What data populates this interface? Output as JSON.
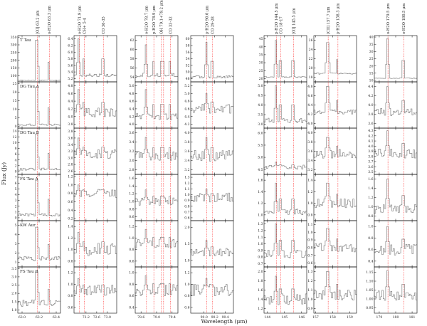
{
  "chart_data": {
    "type": "line",
    "xlabel": "Wavelength (μm)",
    "ylabel": "Flux (Jy)",
    "grid": false,
    "colors": {
      "spectrum": "#888888",
      "line_marker": "#ff2a2a",
      "frame": "#000000"
    },
    "sources": [
      "T Tau",
      "DG Tau A",
      "DG Tau B",
      "FS Tau A",
      "KW Aur",
      "FS Tau B"
    ],
    "windows": [
      {
        "xlim": [
          62.95,
          63.45
        ],
        "xticks": [
          "63.0",
          "63.2",
          "63.4"
        ],
        "lines": [
          {
            "label": "[OI] 63.2 μm",
            "x": 63.18
          },
          {
            "label": "o-H2O 63.3 μm",
            "x": 63.32
          }
        ],
        "rows": [
          {
            "yticks": [
              "100",
              "150",
              "200",
              "250",
              "300",
              "350"
            ],
            "ylim": [
              60,
              360
            ],
            "peak": 330,
            "cont": 70,
            "noise": 2
          },
          {
            "yticks": [
              "0",
              "5",
              "10",
              "15",
              "20",
              "25"
            ],
            "ylim": [
              -1,
              26
            ],
            "peak": 23,
            "cont": 1,
            "noise": 0.5
          },
          {
            "yticks": [
              "0",
              "2",
              "4",
              "6",
              "8",
              "10",
              "12",
              "14"
            ],
            "ylim": [
              -1,
              15
            ],
            "peak": 13,
            "cont": 0.8,
            "noise": 0.4
          },
          {
            "yticks": [
              "0",
              "1",
              "2",
              "3",
              "4",
              "5",
              "6",
              "7"
            ],
            "ylim": [
              -0.5,
              7.5
            ],
            "peak": 6.5,
            "cont": 0.5,
            "noise": 0.25
          },
          {
            "yticks": [
              "1",
              "2",
              "3",
              "4",
              "5"
            ],
            "ylim": [
              0.5,
              5.5
            ],
            "peak": 4.8,
            "cont": 1.4,
            "noise": 0.25
          },
          {
            "yticks": [
              "1.0",
              "1.5",
              "2.0",
              "2.5",
              "3.0",
              "3.5"
            ],
            "ylim": [
              0.8,
              3.6
            ],
            "peak": 3.3,
            "cont": 1.4,
            "noise": 0.2
          }
        ]
      },
      {
        "xlim": [
          71.75,
          73.35
        ],
        "xticks": [
          "72.2",
          "72.6",
          "73.0"
        ],
        "lines": [
          {
            "label": "o-H2O 71.9 μm",
            "x": 71.95
          },
          {
            "label": "CH+ 5-4",
            "x": 72.14
          },
          {
            "label": "CO 36-35",
            "x": 72.85
          }
        ],
        "rows": [
          {
            "yticks": [
              "5.2",
              "5.4",
              "5.6",
              "5.8",
              "6.0",
              "6.2",
              "6.4"
            ],
            "ylim": [
              5.1,
              6.5
            ],
            "peak": 6.4,
            "cont": 5.3,
            "noise": 0.04
          },
          {
            "yticks": [
              "3.8",
              "4.0",
              "4.2",
              "4.4",
              "4.6",
              "4.8"
            ],
            "ylim": [
              3.7,
              4.9
            ],
            "peak": 4.7,
            "cont": 4.1,
            "noise": 0.12
          },
          {
            "yticks": [
              "2.6",
              "2.8",
              "3.0",
              "3.2",
              "3.4",
              "3.6",
              "3.8"
            ],
            "ylim": [
              2.5,
              3.9
            ],
            "peak": 3.6,
            "cont": 3.1,
            "noise": 0.15
          },
          {
            "yticks": [
              "0.2",
              "0.4",
              "0.6",
              "0.8",
              "1.0",
              "1.2"
            ],
            "ylim": [
              0.15,
              1.25
            ],
            "peak": 1.0,
            "cont": 0.8,
            "noise": 0.1
          },
          {
            "yticks": [
              "0.8",
              "1.0",
              "1.2",
              "1.4"
            ],
            "ylim": [
              0.7,
              1.5
            ],
            "peak": 1.3,
            "cont": 1.0,
            "noise": 0.12
          },
          {
            "yticks": [
              "0.6",
              "0.8",
              "1.0",
              "1.2"
            ],
            "ylim": [
              0.5,
              1.3
            ],
            "peak": 1.1,
            "cont": 0.9,
            "noise": 0.1
          }
        ]
      },
      {
        "xlim": [
          78.45,
          79.55
        ],
        "xticks": [
          "78.6",
          "79.0",
          "79.4"
        ],
        "lines": [
          {
            "label": "o-H2O 78.7 μm",
            "x": 78.74
          },
          {
            "label": "p-H2O 78.9 μm",
            "x": 78.93
          },
          {
            "label": "OH 79.1+79.2 μm",
            "x": 79.12
          },
          {
            "label": "",
            "x": 79.18
          },
          {
            "label": "CO 33-32",
            "x": 79.36
          }
        ],
        "rows": [
          {
            "yticks": [
              "54",
              "56",
              "58",
              "60",
              "62"
            ],
            "ylim": [
              53,
              63
            ],
            "peak": 61,
            "cont": 54.5,
            "noise": 0.4
          },
          {
            "yticks": [
              "4.0",
              "4.2",
              "4.4",
              "4.6",
              "4.8",
              "5.0"
            ],
            "ylim": [
              3.9,
              5.1
            ],
            "peak": 4.9,
            "cont": 4.2,
            "noise": 0.08
          },
          {
            "yticks": [
              "2.8",
              "3.0",
              "3.2",
              "3.4",
              "3.6"
            ],
            "ylim": [
              2.7,
              3.7
            ],
            "peak": 3.5,
            "cont": 3.1,
            "noise": 0.1
          },
          {
            "yticks": [
              "0.6",
              "0.8",
              "1.0",
              "1.2",
              "1.4",
              "1.6"
            ],
            "ylim": [
              0.5,
              1.7
            ],
            "peak": 1.3,
            "cont": 1.0,
            "noise": 0.1
          },
          {
            "yticks": [
              "0.6",
              "0.8",
              "1.0",
              "1.2"
            ],
            "ylim": [
              0.5,
              1.3
            ],
            "peak": 1.15,
            "cont": 0.9,
            "noise": 0.08
          },
          {
            "yticks": [
              "0.4",
              "0.6",
              "0.8",
              "1.0"
            ],
            "ylim": [
              0.3,
              1.1
            ],
            "peak": 0.95,
            "cont": 0.7,
            "noise": 0.1
          }
        ]
      },
      {
        "xlim": [
          89.75,
          90.55
        ],
        "xticks": [
          "90.0",
          "90.2",
          "90.4"
        ],
        "lines": [
          {
            "label": "p-H2O 90.0 μm",
            "x": 90.05
          },
          {
            "label": "CO 29-28",
            "x": 90.16
          }
        ],
        "rows": [
          {
            "yticks": [
              "48",
              "50",
              "52",
              "54",
              "56",
              "58",
              "60"
            ],
            "ylim": [
              47,
              61
            ],
            "peak": 59,
            "cont": 48.5,
            "noise": 0.4
          },
          {
            "yticks": [
              "4.2",
              "4.4",
              "4.6",
              "4.8",
              "5.0",
              "5.2"
            ],
            "ylim": [
              4.1,
              5.3
            ],
            "peak": 5.0,
            "cont": 4.6,
            "noise": 0.12
          },
          {
            "yticks": [
              "3.2",
              "3.4",
              "3.6",
              "3.8",
              "4.0"
            ],
            "ylim": [
              3.1,
              4.1
            ],
            "peak": 3.9,
            "cont": 3.5,
            "noise": 0.12
          },
          {
            "yticks": [
              "0.6",
              "0.7",
              "0.8",
              "0.9",
              "1.0",
              "1.1",
              "1.2",
              "1.3"
            ],
            "ylim": [
              0.55,
              1.35
            ],
            "peak": 1.1,
            "cont": 0.95,
            "noise": 0.08
          },
          {
            "yticks": [
              "1.0",
              "1.5",
              "2.0"
            ],
            "ylim": [
              0.8,
              2.2
            ],
            "peak": 1.6,
            "cont": 1.25,
            "noise": 0.12
          },
          {
            "yticks": [
              "0.6",
              "0.8",
              "1.0",
              "1.2"
            ],
            "ylim": [
              0.5,
              1.3
            ],
            "peak": 1.1,
            "cont": 0.9,
            "noise": 0.1
          }
        ]
      },
      {
        "xlim": [
          143.8,
          146.3
        ],
        "xticks": [
          "144",
          "145",
          "146"
        ],
        "lines": [
          {
            "label": "p-H2O 144.5 μm",
            "x": 144.52
          },
          {
            "label": "CO 18-17",
            "x": 144.78
          },
          {
            "label": "[OI] 145.5 μm",
            "x": 145.53
          }
        ],
        "rows": [
          {
            "yticks": [
              "20",
              "25",
              "30",
              "35",
              "40",
              "45"
            ],
            "ylim": [
              18,
              47
            ],
            "peak": 44,
            "cont": 21,
            "noise": 0.3
          },
          {
            "yticks": [
              "3.0",
              "3.5",
              "4.0",
              "4.5",
              "5.0"
            ],
            "ylim": [
              2.8,
              5.2
            ],
            "peak": 5.0,
            "cont": 3.2,
            "noise": 0.12
          },
          {
            "yticks": [
              "4.5",
              "5.0",
              "5.5",
              "6.0"
            ],
            "ylim": [
              4.3,
              6.2
            ],
            "peak": 4.8,
            "cont": 4.6,
            "noise": 0.08
          },
          {
            "yticks": [
              "1.0",
              "1.2",
              "1.4",
              "1.6"
            ],
            "ylim": [
              0.9,
              1.7
            ],
            "peak": 1.55,
            "cont": 1.05,
            "noise": 0.05
          },
          {
            "yticks": [
              "0.7",
              "0.8",
              "0.9",
              "1.0",
              "1.1",
              "1.2",
              "1.3"
            ],
            "ylim": [
              0.65,
              1.35
            ],
            "peak": 1.3,
            "cont": 0.85,
            "noise": 0.06
          },
          {
            "yticks": [
              "1.2",
              "1.4",
              "1.6",
              "1.8",
              "2.0"
            ],
            "ylim": [
              1.1,
              2.1
            ],
            "peak": 1.9,
            "cont": 1.4,
            "noise": 0.12
          }
        ]
      },
      {
        "xlim": [
          156.9,
          159.4
        ],
        "xticks": [
          "157",
          "158",
          "159"
        ],
        "lines": [
          {
            "label": "[CII] 157.7 μm",
            "x": 157.74
          },
          {
            "label": "p-H2O 158.3 μm",
            "x": 158.31
          }
        ],
        "rows": [
          {
            "yticks": [
              "18",
              "20",
              "22",
              "24",
              "26"
            ],
            "ylim": [
              17,
              27
            ],
            "peak": 25.5,
            "cont": 18.8,
            "noise": 0.15
          },
          {
            "yticks": [
              "4.0",
              "4.2",
              "4.4",
              "4.6",
              "4.8"
            ],
            "ylim": [
              3.9,
              4.9
            ],
            "peak": 4.8,
            "cont": 4.25,
            "noise": 0.05
          },
          {
            "yticks": [
              "3.2",
              "3.4",
              "3.6",
              "3.8",
              "4.0"
            ],
            "ylim": [
              3.1,
              4.1
            ],
            "peak": 3.9,
            "cont": 3.55,
            "noise": 0.1
          },
          {
            "yticks": [
              "0.8",
              "1.0",
              "1.2",
              "1.4"
            ],
            "ylim": [
              0.7,
              1.5
            ],
            "peak": 1.35,
            "cont": 1.0,
            "noise": 0.08
          },
          {
            "yticks": [
              "0.6",
              "0.7",
              "0.8",
              "0.9",
              "1.0",
              "1.1"
            ],
            "ylim": [
              0.55,
              1.15
            ],
            "peak": 1.05,
            "cont": 0.8,
            "noise": 0.06
          },
          {
            "yticks": [
              "0.9",
              "1.0",
              "1.1",
              "1.2",
              "1.3"
            ],
            "ylim": [
              0.85,
              1.35
            ],
            "peak": 1.3,
            "cont": 1.05,
            "noise": 0.06
          }
        ]
      },
      {
        "xlim": [
          178.7,
          181.3
        ],
        "xticks": [
          "179",
          "180",
          "181"
        ],
        "lines": [
          {
            "label": "o-H2O 179.5 μm",
            "x": 179.53
          },
          {
            "label": "o-H2O 180.5 μm",
            "x": 180.49
          }
        ],
        "rows": [
          {
            "yticks": [
              "10",
              "15",
              "20",
              "25",
              "30",
              "35",
              "40"
            ],
            "ylim": [
              9,
              41
            ],
            "peak": 39,
            "cont": 11.5,
            "noise": 0.2
          },
          {
            "yticks": [
              "3.6",
              "3.8",
              "4.0",
              "4.2",
              "4.4"
            ],
            "ylim": [
              3.5,
              4.5
            ],
            "peak": 4.4,
            "cont": 3.85,
            "noise": 0.08
          },
          {
            "yticks": [
              "3.5",
              "3.6",
              "3.7",
              "3.8",
              "3.9",
              "4.0",
              "4.1",
              "4.2",
              "4.3"
            ],
            "ylim": [
              3.45,
              4.35
            ],
            "peak": 4.3,
            "cont": 3.85,
            "noise": 0.1
          },
          {
            "yticks": [
              "0.8",
              "1.0",
              "1.2",
              "1.4",
              "1.6"
            ],
            "ylim": [
              0.7,
              1.7
            ],
            "peak": 1.6,
            "cont": 0.95,
            "noise": 0.1
          },
          {
            "yticks": [
              "0.4",
              "0.6",
              "0.8",
              "1.0"
            ],
            "ylim": [
              0.3,
              1.1
            ],
            "peak": 1.0,
            "cont": 0.6,
            "noise": 0.1
          },
          {
            "yticks": [
              "0.95",
              "1.00",
              "1.05",
              "1.10",
              "1.15"
            ],
            "ylim": [
              0.92,
              1.18
            ],
            "peak": 1.16,
            "cont": 1.02,
            "noise": 0.03
          }
        ]
      }
    ]
  }
}
